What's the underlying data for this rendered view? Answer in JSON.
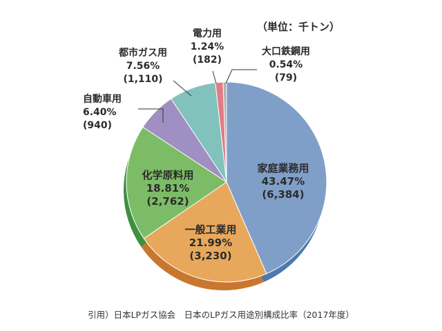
{
  "chart_data": {
    "type": "pie",
    "unit_label": "（単位：千トン）",
    "slices": [
      {
        "label": "家庭業務用",
        "percent": "43.47%",
        "value_text": "(6,384)",
        "value": 6384,
        "color": "#7f9fc8",
        "side": "#4e79ad"
      },
      {
        "label": "一般工業用",
        "percent": "21.99%",
        "value_text": "(3,230)",
        "value": 3230,
        "color": "#e8a85c",
        "side": "#c9762f"
      },
      {
        "label": "化学原料用",
        "percent": "18.81%",
        "value_text": "(2,762)",
        "value": 2762,
        "color": "#7cbc66",
        "side": "#3f8f40"
      },
      {
        "label": "自動車用",
        "percent": "6.40%",
        "value_text": "(940)",
        "value": 940,
        "color": "#9f8fc2",
        "side": "#6f5f9a"
      },
      {
        "label": "都市ガス用",
        "percent": "7.56%",
        "value_text": "(1,110)",
        "value": 1110,
        "color": "#82c2bd",
        "side": "#4f958f"
      },
      {
        "label": "電力用",
        "percent": "1.24%",
        "value_text": "(182)",
        "value": 182,
        "color": "#e07c86",
        "side": "#b24e59"
      },
      {
        "label": "大口鉄鋼用",
        "percent": "0.54%",
        "value_text": "(79)",
        "value": 79,
        "color": "#b0b0b0",
        "side": "#808080"
      }
    ]
  },
  "caption": "引用）日本LPガス協会　日本のLPガス用途別構成比率（2017年度）"
}
